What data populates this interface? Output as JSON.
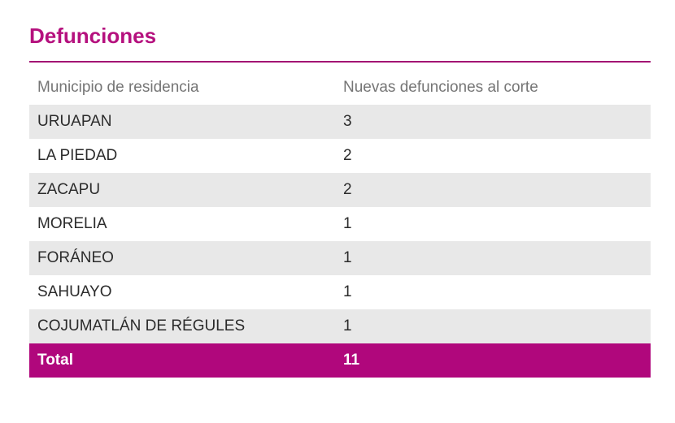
{
  "title": "Defunciones",
  "colors": {
    "accent": "#b5117e",
    "total_row_bg": "#b0077c",
    "shaded_row_bg": "#e8e8e8"
  },
  "table": {
    "headers": [
      "Municipio de residencia",
      "Nuevas defunciones al corte"
    ],
    "rows": [
      {
        "municipio": "URUAPAN",
        "defunciones": "3"
      },
      {
        "municipio": "LA PIEDAD",
        "defunciones": "2"
      },
      {
        "municipio": "ZACAPU",
        "defunciones": "2"
      },
      {
        "municipio": "MORELIA",
        "defunciones": "1"
      },
      {
        "municipio": "FORÁNEO",
        "defunciones": "1"
      },
      {
        "municipio": "SAHUAYO",
        "defunciones": "1"
      },
      {
        "municipio": "COJUMATLÁN DE RÉGULES",
        "defunciones": "1"
      }
    ],
    "total": {
      "label": "Total",
      "value": "11"
    }
  }
}
